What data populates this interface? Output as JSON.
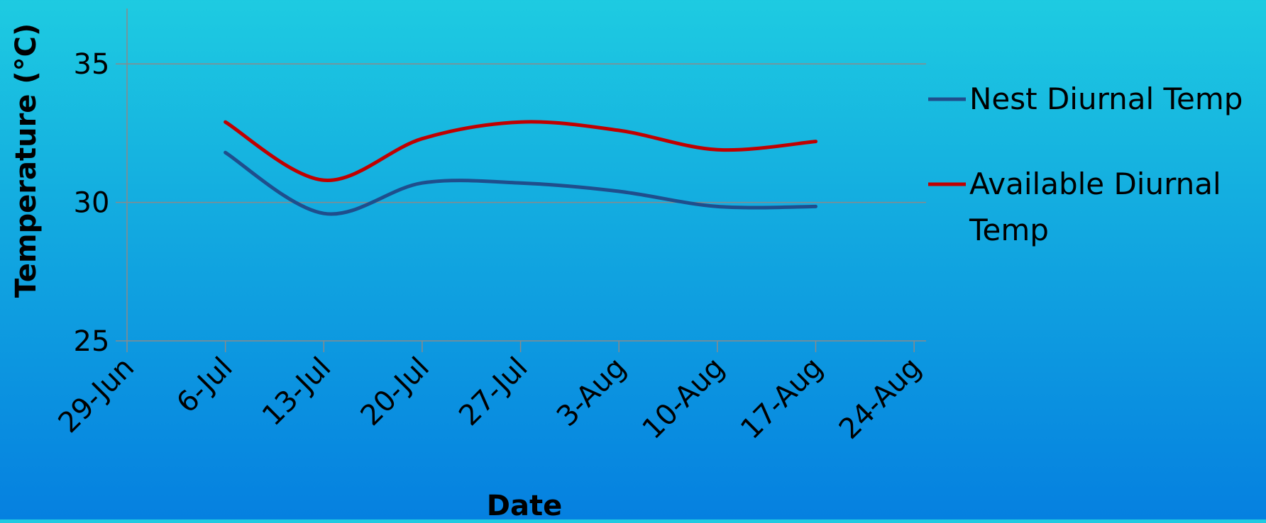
{
  "chart_data": {
    "type": "line",
    "title": "",
    "xlabel": "Date",
    "ylabel": "Temperature (°C)",
    "x_ticks": [
      "29-Jun",
      "6-Jul",
      "13-Jul",
      "20-Jul",
      "27-Jul",
      "3-Aug",
      "10-Aug",
      "17-Aug",
      "24-Aug"
    ],
    "y_ticks": [
      25,
      30,
      35
    ],
    "ylim": [
      25,
      37
    ],
    "xlim": [
      "29-Jun",
      "24-Aug"
    ],
    "grid": "horizontal",
    "smooth": true,
    "legend_position": "right",
    "x": [
      "6-Jul",
      "13-Jul",
      "20-Jul",
      "27-Jul",
      "3-Aug",
      "10-Aug",
      "17-Aug"
    ],
    "series": [
      {
        "name": "Nest Diurnal Temp",
        "color": "#1f4e8c",
        "values": [
          31.8,
          29.6,
          30.7,
          30.7,
          30.4,
          29.85,
          29.85
        ]
      },
      {
        "name": "Available Diurnal Temp",
        "color": "#c00000",
        "values": [
          32.9,
          30.8,
          32.3,
          32.9,
          32.6,
          31.9,
          32.2
        ]
      }
    ]
  }
}
